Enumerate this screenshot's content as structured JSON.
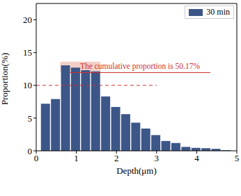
{
  "chart_data": {
    "type": "histogram",
    "x_label": "Depth(μm)",
    "y_label": "Proportion(%)",
    "series_name": "30 min",
    "color": "#3c5688",
    "bins": [
      0.1,
      0.35,
      0.6,
      0.85,
      1.1,
      1.35,
      1.6,
      1.85,
      2.1,
      2.35,
      2.6,
      2.85,
      3.1,
      3.35,
      3.6,
      3.85,
      4.1,
      4.35,
      4.6,
      4.85
    ],
    "values": [
      7.2,
      7.9,
      13.05,
      12.7,
      12.3,
      12.12,
      8.3,
      6.7,
      5.6,
      4.3,
      3.4,
      2.4,
      1.5,
      1.2,
      0.6,
      0.45,
      0.4,
      0.3,
      0.1
    ],
    "xlim": [
      0,
      5
    ],
    "xticks": [
      0,
      1,
      2,
      3,
      4,
      5
    ],
    "ylim": [
      0,
      22.5
    ],
    "yticks": [
      0,
      5,
      10,
      15,
      20
    ],
    "legend": "upper right",
    "annotation": "The cumulative proportion is 50.17%",
    "highlight": {
      "x": [
        0.6,
        1.6
      ],
      "y": [
        12,
        13.6
      ],
      "color": "#e8a898"
    },
    "reference_line": {
      "y": 10,
      "x": [
        0,
        3
      ],
      "color": "#d03030",
      "line_style": "dashed"
    },
    "annotation_color": "#d03030"
  }
}
